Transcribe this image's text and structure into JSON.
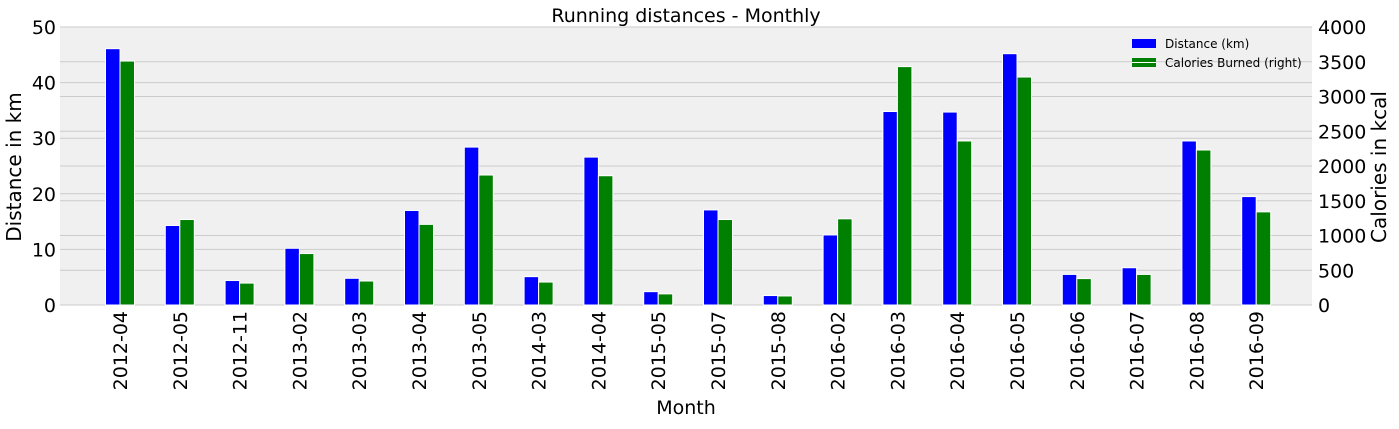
{
  "chart_data": {
    "type": "bar",
    "title": "Running distances - Monthly",
    "xlabel": "Month",
    "ylabel": "Distance in km",
    "y2label": "Calories in kcal",
    "categories": [
      "2012-04",
      "2012-05",
      "2012-11",
      "2013-02",
      "2013-03",
      "2013-04",
      "2013-05",
      "2014-03",
      "2014-04",
      "2015-05",
      "2015-07",
      "2015-08",
      "2016-02",
      "2016-03",
      "2016-04",
      "2016-05",
      "2016-06",
      "2016-07",
      "2016-08",
      "2016-09"
    ],
    "series": [
      {
        "name": "Distance (km)",
        "axis": "left",
        "color": "#0000ff",
        "values": [
          46.1,
          14.3,
          4.4,
          10.2,
          4.8,
          17.0,
          28.4,
          5.1,
          26.6,
          2.4,
          17.1,
          1.7,
          12.6,
          34.8,
          34.7,
          45.2,
          5.5,
          6.7,
          29.5,
          19.5
        ]
      },
      {
        "name": "Calories Burned (right)",
        "axis": "right",
        "color": "#008000",
        "values": [
          3510,
          1230,
          315,
          740,
          345,
          1160,
          1870,
          330,
          1860,
          160,
          1230,
          130,
          1240,
          3430,
          2360,
          3280,
          380,
          440,
          2230,
          1340
        ]
      }
    ],
    "ylim": [
      0,
      50
    ],
    "y2lim": [
      0,
      4000
    ],
    "yticks": [
      "0",
      "10",
      "20",
      "30",
      "40",
      "50"
    ],
    "y2ticks": [
      "0",
      "500",
      "1000",
      "1500",
      "2000",
      "2500",
      "3000",
      "3500",
      "4000"
    ],
    "grid": true,
    "legend_position": "top-right",
    "colors": {
      "plot_background": "#f0f0f0",
      "grid": "#cbcbcb"
    }
  }
}
